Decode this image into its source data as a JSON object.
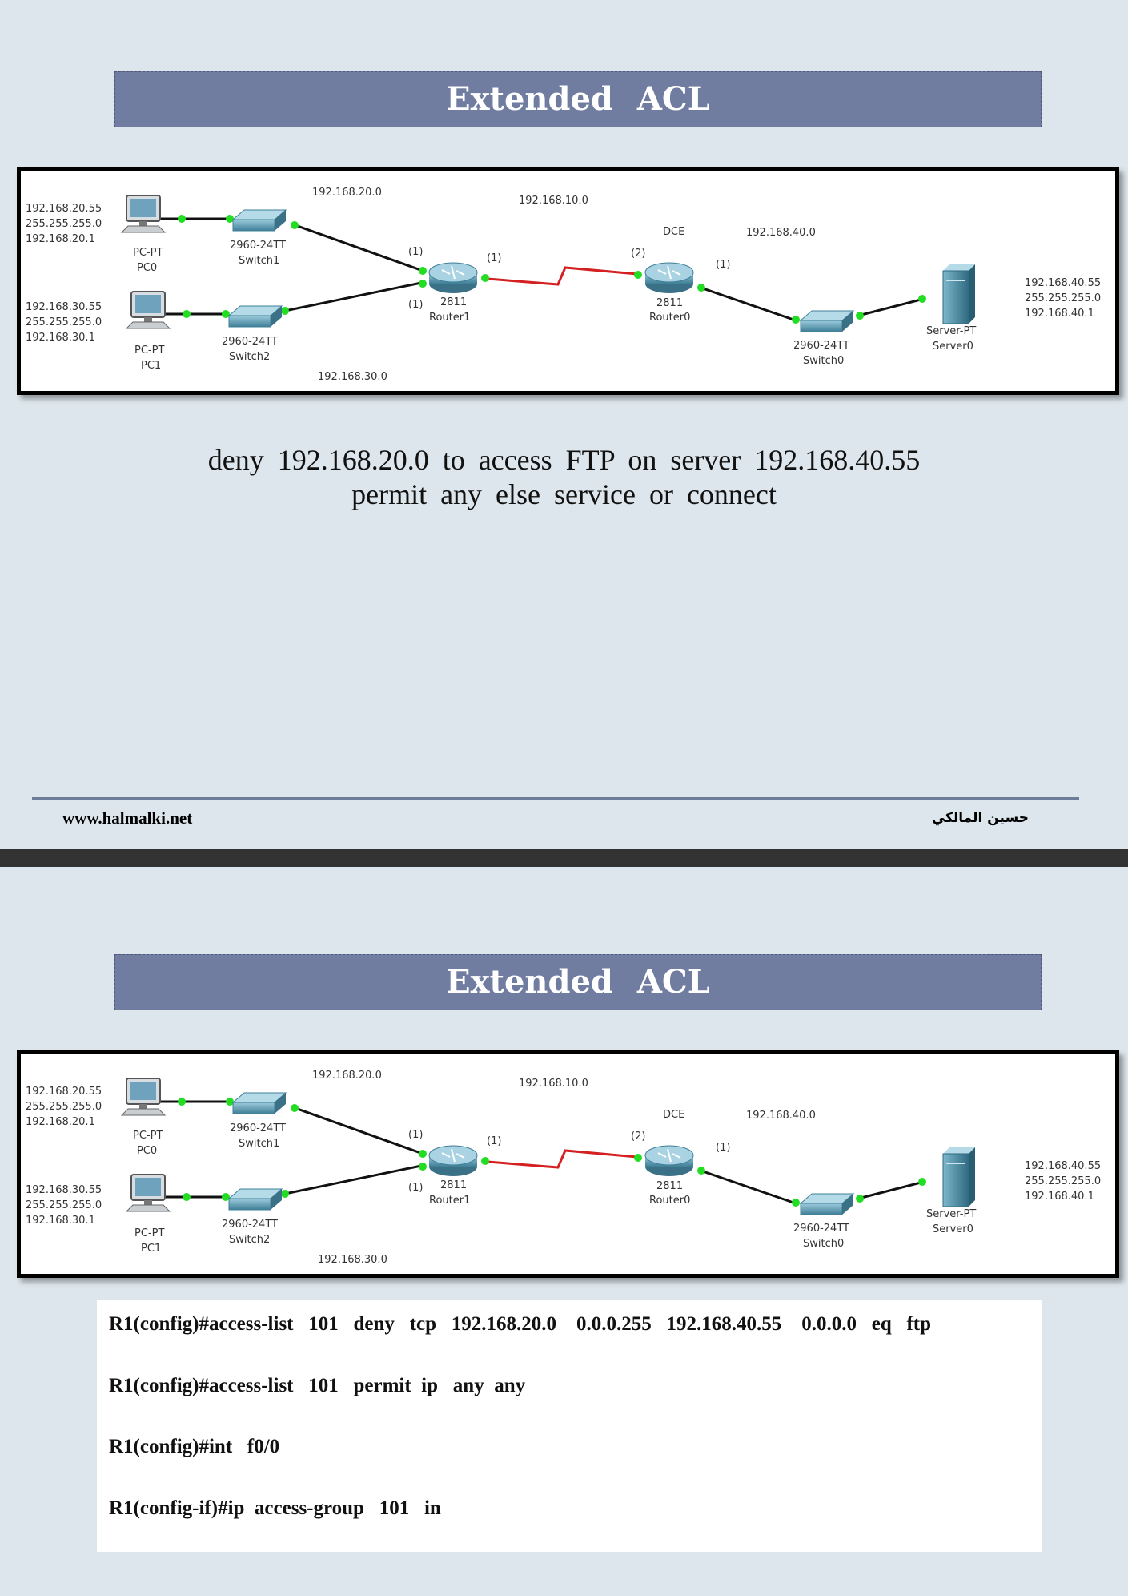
{
  "pages": [
    {
      "title": "Extended   ACL",
      "description": {
        "line1": "deny  192.168.20.0    to access   FTP  on server  192.168.40.55",
        "line2": "permit  any else  service or connect"
      },
      "footer": {
        "website": "www.halmalki.net",
        "author": "حسين المالكي"
      }
    },
    {
      "title": "Extended   ACL",
      "commands": [
        "R1(config)#access-list   101   deny   tcp   192.168.20.0    0.0.0.255   192.168.40.55    0.0.0.0   eq   ftp",
        "R1(config)#access-list   101   permit  ip   any  any",
        "R1(config)#int   f0/0",
        "R1(config-if)#ip  access-group   101   in"
      ]
    }
  ],
  "diagram": {
    "networks": {
      "net_left_top": "192.168.20.0",
      "net_left_bottom": "192.168.30.0",
      "net_center": "192.168.10.0",
      "net_right": "192.168.40.0",
      "dce": "DCE"
    },
    "pc0": {
      "ip": "192.168.20.55",
      "mask": "255.255.255.0",
      "gateway": "192.168.20.1",
      "type": "PC-PT",
      "name": "PC0"
    },
    "pc1": {
      "ip": "192.168.30.55",
      "mask": "255.255.255.0",
      "gateway": "192.168.30.1",
      "type": "PC-PT",
      "name": "PC1"
    },
    "server0": {
      "ip": "192.168.40.55",
      "mask": "255.255.255.0",
      "gateway": "192.168.40.1",
      "type": "Server-PT",
      "name": "Server0"
    },
    "switch1": {
      "model": "2960-24TT",
      "name": "Switch1"
    },
    "switch2": {
      "model": "2960-24TT",
      "name": "Switch2"
    },
    "switch0": {
      "model": "2960-24TT",
      "name": "Switch0"
    },
    "router1": {
      "model": "2811",
      "name": "Router1"
    },
    "router0": {
      "model": "2811",
      "name": "Router0"
    },
    "ports": {
      "p1": "(1)",
      "p2": "(2)"
    },
    "colors": {
      "serial_link": "#d42020",
      "ethernet_link": "#111111",
      "port_dot": "#22dd22",
      "device": "#4a8fa8"
    }
  }
}
